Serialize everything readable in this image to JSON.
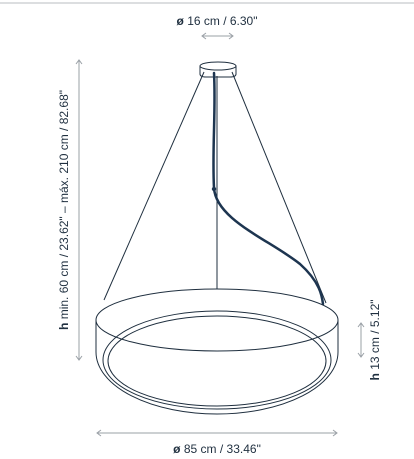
{
  "dimensions": {
    "canopy_diameter": {
      "symbol": "ø",
      "value": "16 cm / 6.30\""
    },
    "suspension_height": {
      "symbol": "h",
      "value": "min. 60 cm / 23.62\" – máx. 210 cm / 82.68\""
    },
    "ring_height": {
      "symbol": "h",
      "value": "13 cm / 5.12\""
    },
    "ring_diameter": {
      "symbol": "ø",
      "value": "85 cm / 33.46\""
    }
  },
  "colors": {
    "outline": "#1f2f3f",
    "dimension_line": "#9aa0a6",
    "cable": "#1d3550",
    "top_rule": "#b8bcc0"
  }
}
